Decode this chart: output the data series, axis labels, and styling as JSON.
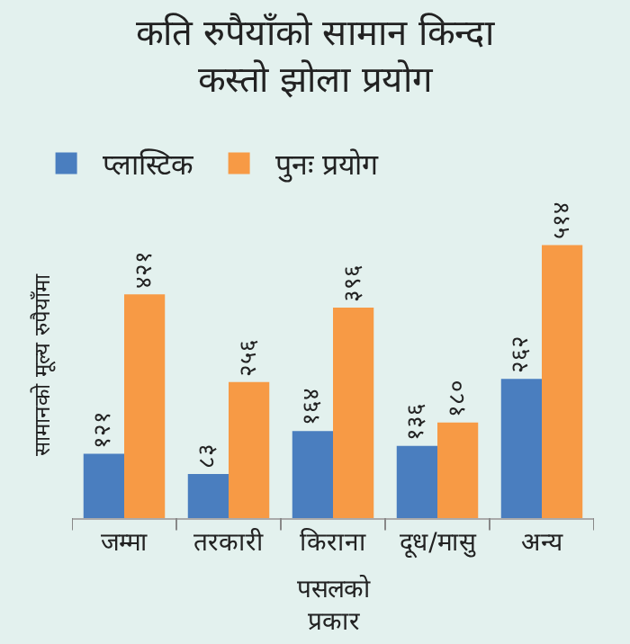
{
  "chart_data": {
    "type": "bar",
    "title": "कति रुपैयाँको सामान किन्दा कस्तो झोला प्रयोग",
    "ylabel": "सामानको मूल्य रुपैयाँमा",
    "xlabel": "पसलको प्रकार",
    "categories": [
      "जम्मा",
      "तरकारी",
      "किराना",
      "दूध/मासु",
      "अन्य"
    ],
    "series": [
      {
        "name": "प्लास्टिक",
        "color": "#4a7ebf",
        "values": [
          121,
          83,
          164,
          136,
          262
        ],
        "value_labels": [
          "१२१",
          "८३",
          "१६४",
          "१३६",
          "२६२"
        ]
      },
      {
        "name": "पुनः प्रयोग",
        "color": "#f79a45",
        "values": [
          421,
          256,
          396,
          180,
          514
        ],
        "value_labels": [
          "४२१",
          "२५६",
          "३९६",
          "१८०",
          "५१४"
        ]
      }
    ],
    "legend": "top left",
    "grid": false
  }
}
